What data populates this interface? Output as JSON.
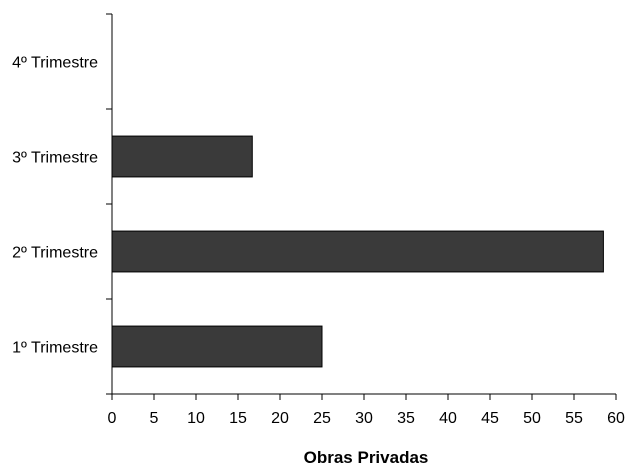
{
  "chart_data": {
    "type": "bar",
    "orientation": "horizontal",
    "categories": [
      "1º Trimestre",
      "2º Trimestre",
      "3º Trimestre",
      "4º Trimestre"
    ],
    "values": [
      25,
      58.5,
      16.7,
      0
    ],
    "xlabel": "Obras Privadas",
    "ylabel": "",
    "xlim": [
      0,
      60
    ],
    "xticks": [
      0,
      5,
      10,
      15,
      20,
      25,
      30,
      35,
      40,
      45,
      50,
      55,
      60
    ],
    "grid": false,
    "legend": "none",
    "colors": {
      "bar_fill": "#3a3a3a",
      "bar_stroke": "#000000",
      "axis": "#000000"
    }
  }
}
